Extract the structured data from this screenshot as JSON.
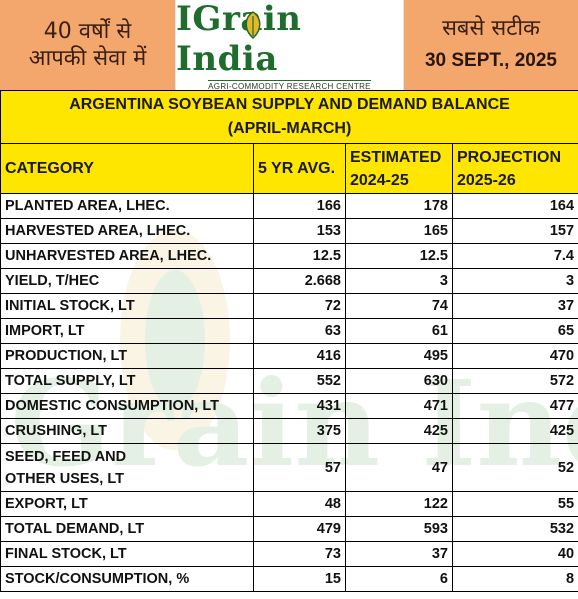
{
  "header": {
    "left_line1": "40 वर्षों से",
    "left_line2": "आपकी सेवा में",
    "brand": "IGrain India",
    "brand_tagline": "AGRI-COMMODITY RESEARCH CENTRE",
    "right_line1": "सबसे सटीक",
    "date": "30 SEPT., 2025"
  },
  "title": {
    "line1": "ARGENTINA SOYBEAN SUPPLY AND DEMAND BALANCE",
    "line2": "(APRIL-MARCH)"
  },
  "columns": {
    "category": "CATEGORY",
    "avg": "5 YR AVG.",
    "est_line1": "ESTIMATED",
    "est_line2": "2024-25",
    "proj_line1": "PROJECTION",
    "proj_line2": "2025-26"
  },
  "rows": [
    {
      "category": "PLANTED AREA, LHEC.",
      "avg": "166",
      "est": "178",
      "proj": "164"
    },
    {
      "category": "HARVESTED AREA, LHEC.",
      "avg": "153",
      "est": "165",
      "proj": "157"
    },
    {
      "category": "UNHARVESTED AREA, LHEC.",
      "avg": "12.5",
      "est": "12.5",
      "proj": "7.4"
    },
    {
      "category": "YIELD, T/HEC",
      "avg": "2.668",
      "est": "3",
      "proj": "3"
    },
    {
      "category": "INITIAL STOCK, LT",
      "avg": "72",
      "est": "74",
      "proj": "37"
    },
    {
      "category": "IMPORT, LT",
      "avg": "63",
      "est": "61",
      "proj": "65"
    },
    {
      "category": "PRODUCTION, LT",
      "avg": "416",
      "est": "495",
      "proj": "470"
    },
    {
      "category": "TOTAL SUPPLY, LT",
      "avg": "552",
      "est": "630",
      "proj": "572"
    },
    {
      "category": "DOMESTIC CONSUMPTION, LT",
      "avg": "431",
      "est": "471",
      "proj": "477"
    },
    {
      "category": "CRUSHING, LT",
      "avg": "375",
      "est": "425",
      "proj": "425"
    },
    {
      "category_line1": "SEED, FEED AND",
      "category_line2": "OTHER USES, LT",
      "avg": "57",
      "est": "47",
      "proj": "52"
    },
    {
      "category": "EXPORT, LT",
      "avg": "48",
      "est": "122",
      "proj": "55"
    },
    {
      "category": "TOTAL DEMAND, LT",
      "avg": "479",
      "est": "593",
      "proj": "532"
    },
    {
      "category": "FINAL STOCK, LT",
      "avg": "73",
      "est": "37",
      "proj": "40"
    },
    {
      "category": "STOCK/CONSUMPTION, %",
      "avg": "15",
      "est": "6",
      "proj": "8"
    }
  ],
  "colors": {
    "header_orange": "#f4a76c",
    "title_yellow": "#ffe600",
    "brand_green": "#1f6d2c",
    "watermark_green": "#3a8f3a"
  }
}
